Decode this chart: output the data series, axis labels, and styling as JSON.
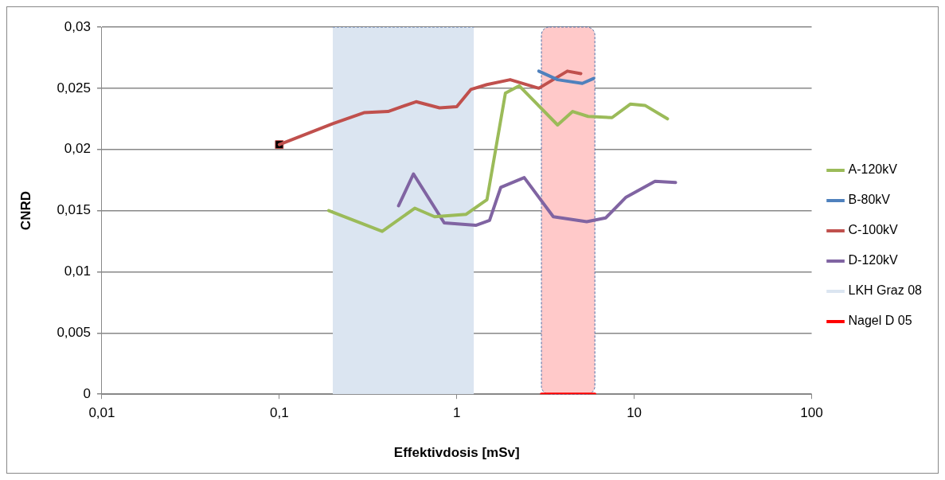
{
  "chart_data": {
    "type": "line",
    "xlabel": "Effektivdosis [mSv]",
    "ylabel": "CNRD",
    "log": "x",
    "grid": "y",
    "legend": "right",
    "marker": "none",
    "line_style": "solid",
    "xlim": [
      0.01,
      100
    ],
    "xticks": [
      {
        "value": 0.01,
        "label": "0,01"
      },
      {
        "value": 0.1,
        "label": "0,1"
      },
      1,
      10,
      100
    ],
    "ylim": [
      0,
      0.03
    ],
    "yticks": [
      0,
      {
        "value": 0.005,
        "label": "0,005"
      },
      {
        "value": 0.01,
        "label": "0,01"
      },
      {
        "value": 0.015,
        "label": "0,015"
      },
      {
        "value": 0.02,
        "label": "0,02"
      },
      {
        "value": 0.025,
        "label": "0,025"
      },
      {
        "value": 0.03,
        "label": "0,03"
      }
    ],
    "series": [
      {
        "name": "A-120kV",
        "color": "#9bbb59",
        "x": [
          0.19,
          0.38,
          0.58,
          0.75,
          1.13,
          1.48,
          1.88,
          2.25,
          3.7,
          4.5,
          5.5,
          7.5,
          9.5,
          11.5,
          15.4
        ],
        "values": [
          0.015,
          0.0133,
          0.0152,
          0.0145,
          0.0147,
          0.0159,
          0.0246,
          0.0252,
          0.022,
          0.0231,
          0.0227,
          0.0226,
          0.0237,
          0.0236,
          0.0225
        ]
      },
      {
        "name": "B-80kV",
        "color": "#4f81bd",
        "x": [
          2.9,
          3.7,
          5.1,
          5.9
        ],
        "values": [
          0.0264,
          0.0257,
          0.0254,
          0.0258
        ]
      },
      {
        "name": "C-100kV",
        "color": "#c0504d",
        "x": [
          0.1,
          0.2,
          0.3,
          0.41,
          0.59,
          0.8,
          1,
          1.2,
          1.48,
          2,
          2.9,
          4.2,
          5
        ],
        "values": [
          0.0204,
          0.0221,
          0.023,
          0.0231,
          0.0239,
          0.0234,
          0.0235,
          0.0249,
          0.0253,
          0.0257,
          0.025,
          0.0264,
          0.0262
        ]
      },
      {
        "name": "D-120kV",
        "color": "#8064a2",
        "x": [
          0.47,
          0.57,
          0.85,
          1.28,
          1.53,
          1.77,
          2.4,
          3.5,
          5.4,
          6.9,
          9,
          13.1,
          17.1
        ],
        "values": [
          0.0154,
          0.018,
          0.014,
          0.0138,
          0.0142,
          0.0169,
          0.0177,
          0.0145,
          0.0141,
          0.0144,
          0.0161,
          0.0174,
          0.0173
        ]
      },
      {
        "name": "LKH Graz 08",
        "type": "area",
        "color": "#dbe5f1",
        "x": [
          0.2,
          1.25
        ],
        "values": [
          0.03,
          0.03
        ]
      },
      {
        "name": "Nagel D 05",
        "color": "#ff0000",
        "x": [
          3,
          6
        ],
        "values": [
          0,
          0
        ]
      },
      {
        "type": "scatter",
        "color": "#000000",
        "marker": "square",
        "x": [
          0.1
        ],
        "values": [
          0.0204
        ]
      }
    ],
    "bands": [
      {
        "axis": "x",
        "from": 3,
        "to": 6,
        "color": "#ffc9c9"
      }
    ]
  }
}
